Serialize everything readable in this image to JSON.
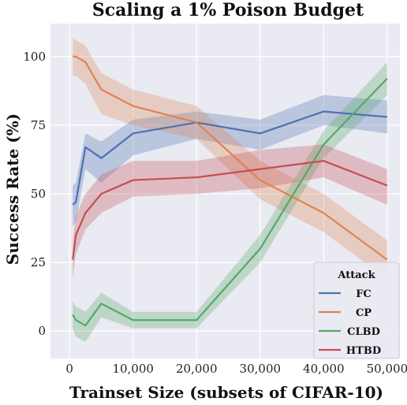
{
  "chart_data": {
    "type": "line",
    "title": "Scaling a 1% Poison Budget",
    "xlabel": "Trainset Size (subsets of CIFAR-10)",
    "ylabel": "Success Rate (%)",
    "xlim": [
      -3000,
      52000
    ],
    "ylim": [
      -10,
      112
    ],
    "xticks": [
      0,
      10000,
      20000,
      30000,
      40000,
      50000
    ],
    "xtick_labels": [
      "0",
      "10,000",
      "20,000",
      "30,000",
      "40,000",
      "50,000"
    ],
    "yticks": [
      0,
      25,
      50,
      75,
      100
    ],
    "ytick_labels": [
      "0",
      "25",
      "50",
      "75",
      "100"
    ],
    "grid": true,
    "legend": {
      "title": "Attack",
      "placement": "lower-right"
    },
    "series": [
      {
        "name": "FC",
        "color": "#4c72b0",
        "x": [
          500,
          1000,
          2500,
          5000,
          10000,
          20000,
          30000,
          40000,
          50000
        ],
        "y": [
          46,
          47,
          67,
          63,
          72,
          76,
          72,
          80,
          78
        ],
        "lower": [
          38,
          40,
          59,
          54,
          64,
          70,
          66,
          75,
          72
        ],
        "upper": [
          53,
          54,
          72,
          69,
          77,
          80,
          77,
          86,
          84
        ]
      },
      {
        "name": "CP",
        "color": "#dd8452",
        "x": [
          500,
          1000,
          2500,
          5000,
          10000,
          20000,
          30000,
          40000,
          50000
        ],
        "y": [
          100,
          100,
          98,
          88,
          82,
          76,
          55,
          43,
          26
        ],
        "lower": [
          93,
          93,
          90,
          79,
          75,
          70,
          48,
          36,
          19
        ],
        "upper": [
          107,
          106,
          104,
          94,
          88,
          82,
          62,
          50,
          33
        ]
      },
      {
        "name": "CLBD",
        "color": "#55a868",
        "x": [
          500,
          1000,
          2500,
          5000,
          10000,
          20000,
          30000,
          40000,
          50000
        ],
        "y": [
          6,
          4,
          2,
          10,
          4,
          4,
          30,
          68,
          92
        ],
        "lower": [
          1,
          -2,
          -4,
          5,
          1,
          1,
          25,
          63,
          86
        ],
        "upper": [
          11,
          9,
          7,
          14,
          7,
          7,
          35,
          73,
          98
        ]
      },
      {
        "name": "HTBD",
        "color": "#c44e52",
        "x": [
          500,
          1000,
          2500,
          5000,
          10000,
          20000,
          30000,
          40000,
          50000
        ],
        "y": [
          26,
          35,
          43,
          50,
          55,
          56,
          59,
          62,
          53
        ],
        "lower": [
          19,
          28,
          37,
          43,
          49,
          50,
          52,
          56,
          46
        ],
        "upper": [
          33,
          42,
          50,
          57,
          62,
          62,
          66,
          68,
          59
        ]
      }
    ]
  }
}
